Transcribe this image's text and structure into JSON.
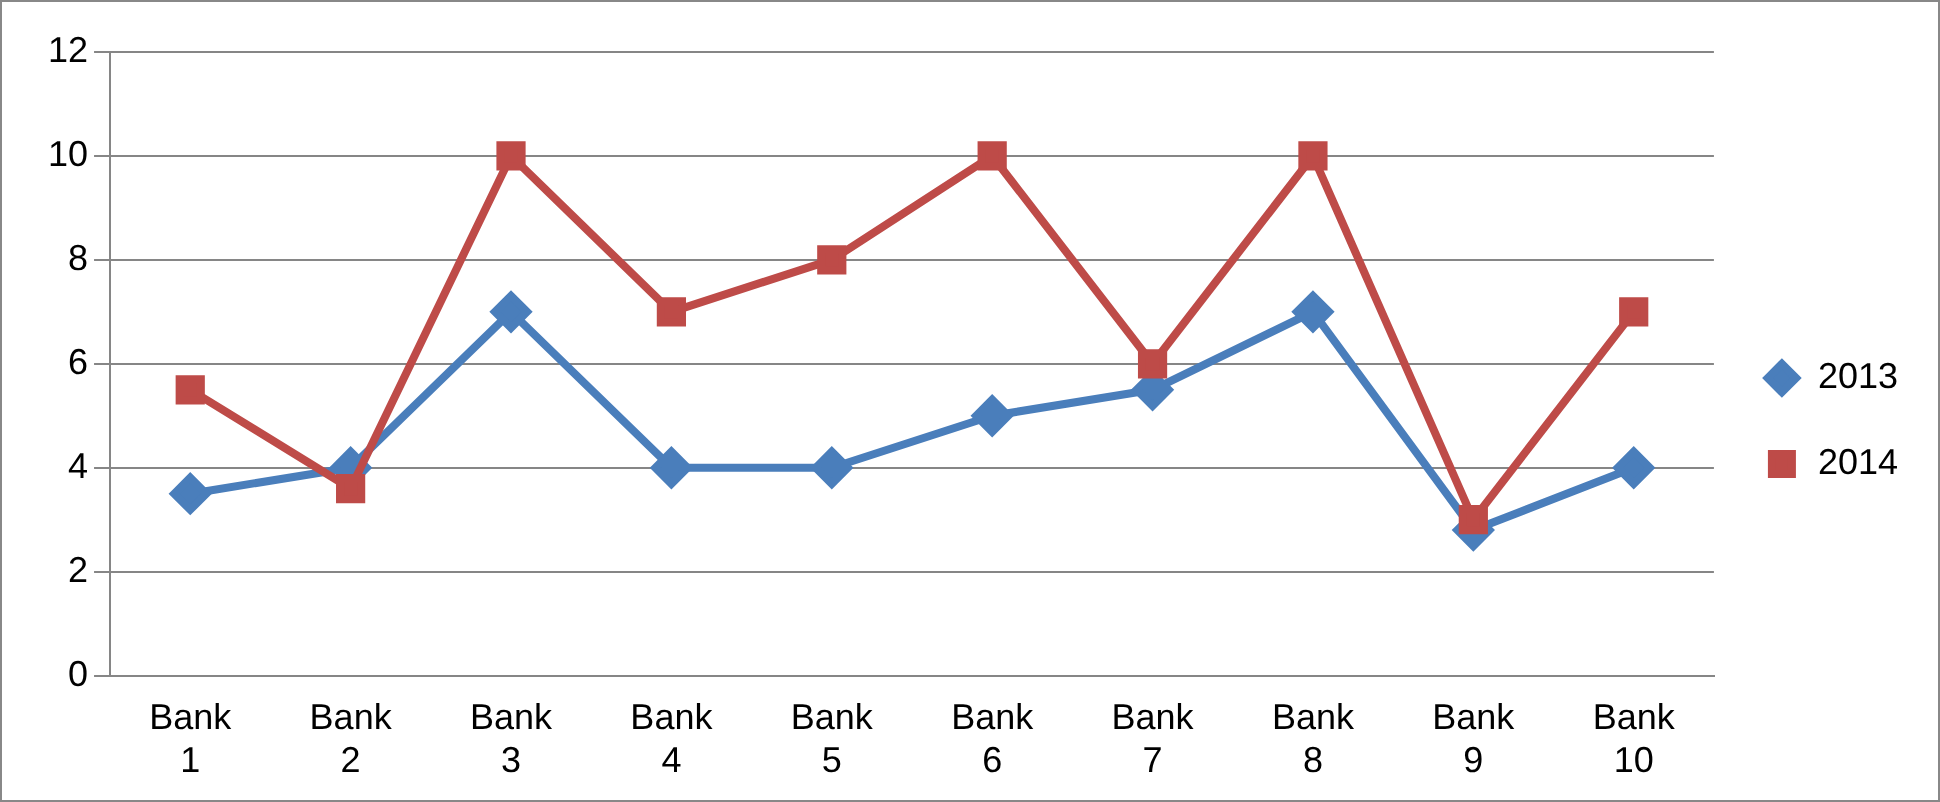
{
  "chart_data": {
    "type": "line",
    "categories": [
      "Bank 1",
      "Bank 2",
      "Bank 3",
      "Bank 4",
      "Bank 5",
      "Bank 6",
      "Bank 7",
      "Bank 8",
      "Bank 9",
      "Bank 10"
    ],
    "series": [
      {
        "name": "2013",
        "color": "#4a7ebb",
        "marker": "diamond",
        "values": [
          3.5,
          4,
          7,
          4,
          4,
          5,
          5.5,
          7,
          2.8,
          4
        ]
      },
      {
        "name": "2014",
        "color": "#be4b48",
        "marker": "square",
        "values": [
          5.5,
          3.6,
          10,
          7,
          8,
          10,
          6,
          10,
          3,
          7
        ]
      }
    ],
    "ylim": [
      0,
      12
    ],
    "yticks": [
      0,
      2,
      4,
      6,
      8,
      10,
      12
    ],
    "grid": "y",
    "legend": "right",
    "line_style": "solid"
  }
}
